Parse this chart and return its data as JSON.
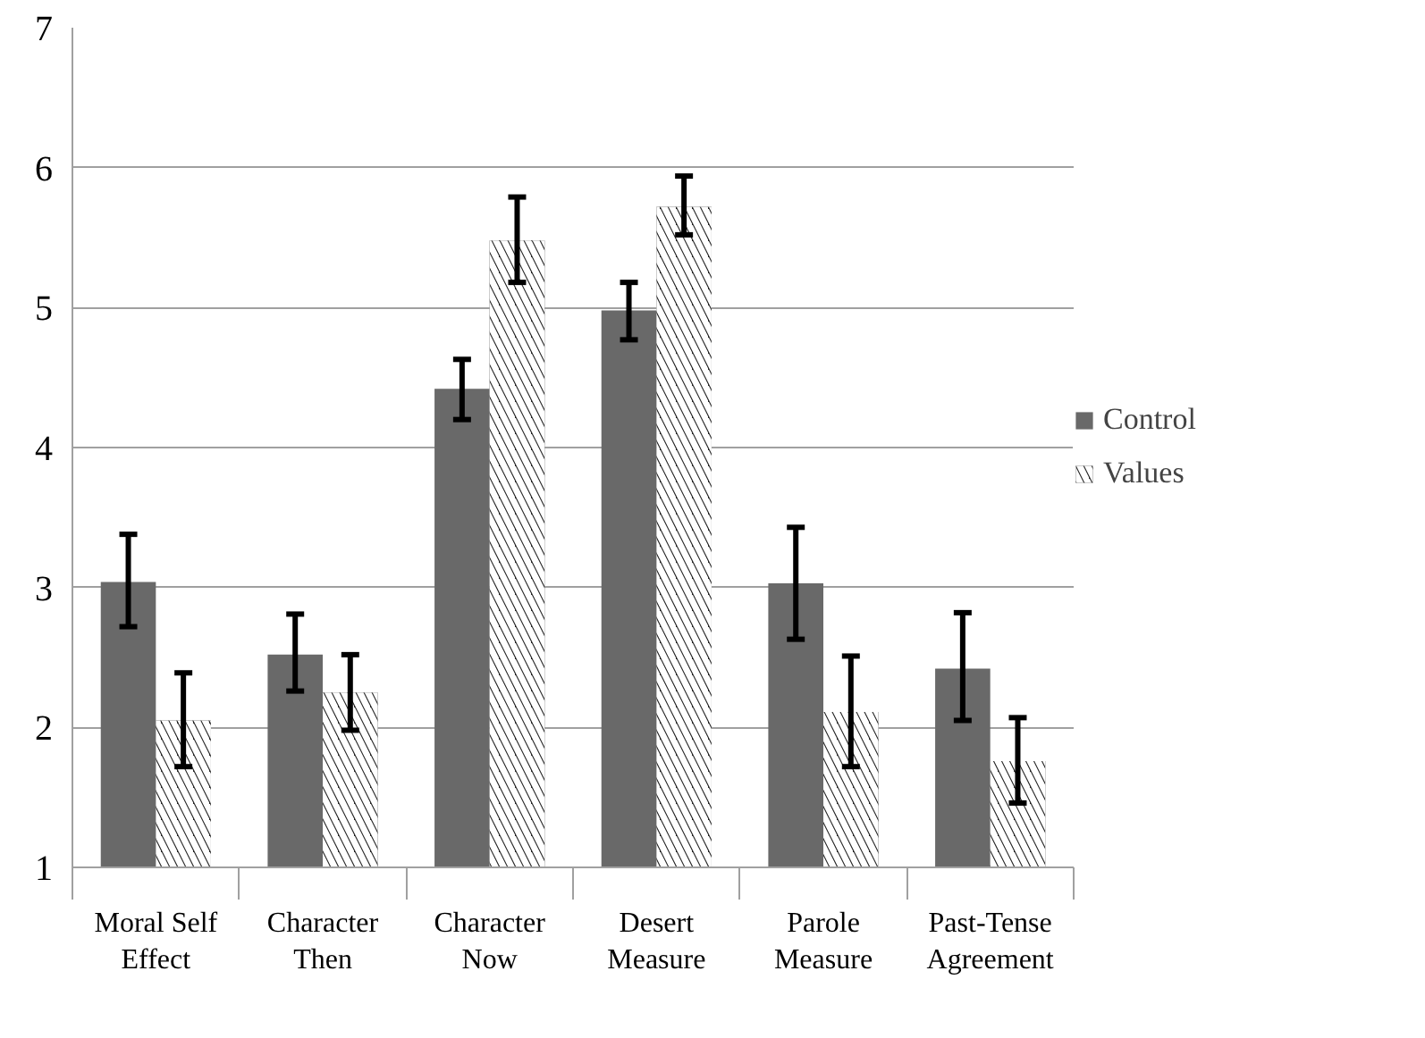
{
  "chart_data": {
    "type": "bar",
    "categories": [
      "Moral Self\nEffect",
      "Character\nThen",
      "Character\nNow",
      "Desert\nMeasure",
      "Parole\nMeasure",
      "Past-Tense\nAgreement"
    ],
    "series": [
      {
        "name": "Control",
        "color": "#696969",
        "values": [
          3.04,
          2.52,
          4.42,
          4.98,
          3.03,
          2.42
        ],
        "errors": [
          [
            2.72,
            3.38
          ],
          [
            2.26,
            2.81
          ],
          [
            4.2,
            4.63
          ],
          [
            4.77,
            5.18
          ],
          [
            2.63,
            3.43
          ],
          [
            2.05,
            2.82
          ]
        ]
      },
      {
        "name": "Values",
        "color": "#222222",
        "values": [
          2.05,
          2.25,
          5.48,
          5.72,
          2.11,
          1.76
        ],
        "errors": [
          [
            1.72,
            2.39
          ],
          [
            1.98,
            2.52
          ],
          [
            5.18,
            5.79
          ],
          [
            5.52,
            5.94
          ],
          [
            1.72,
            2.51
          ],
          [
            1.46,
            2.07
          ]
        ]
      }
    ],
    "ylim": [
      1,
      7
    ],
    "yticks": [
      1,
      2,
      3,
      4,
      5,
      6,
      7
    ],
    "grid": "y",
    "legend": "right"
  }
}
